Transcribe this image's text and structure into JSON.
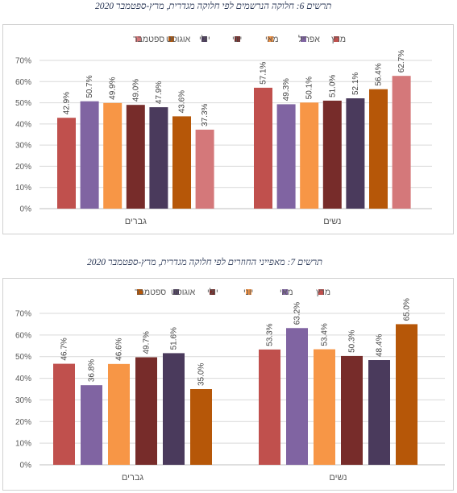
{
  "chart_data": [
    {
      "type": "bar",
      "title": "תרשים 6: חלוקה הנרשמים לפי חלוקה מגדרית, מרץ-ספטמבר 2020",
      "categories": [
        "נשים",
        "גברים"
      ],
      "series": [
        {
          "name": "מרץ",
          "color": "#c0504d",
          "values": [
            57.1,
            42.9
          ]
        },
        {
          "name": "אפריל",
          "color": "#8064a2",
          "values": [
            49.3,
            50.7
          ]
        },
        {
          "name": "מאי",
          "color": "#f79646",
          "values": [
            50.1,
            49.9
          ]
        },
        {
          "name": "יוני",
          "color": "#772c2a",
          "values": [
            51.0,
            49.0
          ]
        },
        {
          "name": "יולי",
          "color": "#4a3a5c",
          "values": [
            52.1,
            47.9
          ]
        },
        {
          "name": "אוגוסט",
          "color": "#b65708",
          "values": [
            56.4,
            43.6
          ]
        },
        {
          "name": "ספטמבר",
          "color": "#d4787a",
          "values": [
            62.7,
            37.3
          ]
        }
      ],
      "data_labels": [
        [
          "57.1%",
          "49.3%",
          "50.1%",
          "51.0%",
          "52.1%",
          "56.4%",
          "62.7%"
        ],
        [
          "42.9%",
          "50.7%",
          "49.9%",
          "49.0%",
          "47.9%",
          "43.6%",
          "37.3%"
        ]
      ],
      "yticks": [
        "0%",
        "10%",
        "20%",
        "30%",
        "40%",
        "50%",
        "60%",
        "70%"
      ],
      "ylim": [
        0,
        70
      ],
      "legend_position": "top",
      "grid": true
    },
    {
      "type": "bar",
      "title": "תרשים 7: מאפייני החוזרים לפי חלוקה מגדרית, מרץ-ספטמבר 2020",
      "categories": [
        "נשים",
        "גברים"
      ],
      "series": [
        {
          "name": "מרץ",
          "color": "#c0504d",
          "values": [
            53.3,
            46.7
          ]
        },
        {
          "name": "מאי",
          "color": "#8064a2",
          "values": [
            63.2,
            36.8
          ]
        },
        {
          "name": "יוני",
          "color": "#f79646",
          "values": [
            53.4,
            46.6
          ]
        },
        {
          "name": "יולי",
          "color": "#772c2a",
          "values": [
            50.3,
            49.7
          ]
        },
        {
          "name": "אוגוסט",
          "color": "#4a3a5c",
          "values": [
            48.4,
            51.6
          ]
        },
        {
          "name": "ספטמבר",
          "color": "#b65708",
          "values": [
            65.0,
            35.0
          ]
        }
      ],
      "data_labels": [
        [
          "53.3%",
          "63.2%",
          "53.4%",
          "50.3%",
          "48.4%",
          "65.0%"
        ],
        [
          "46.7%",
          "36.8%",
          "46.6%",
          "49.7%",
          "51.6%",
          "35.0%"
        ]
      ],
      "yticks": [
        "0%",
        "10%",
        "20%",
        "30%",
        "40%",
        "50%",
        "60%",
        "70%"
      ],
      "ylim": [
        0,
        70
      ],
      "legend_position": "top",
      "grid": true
    }
  ]
}
